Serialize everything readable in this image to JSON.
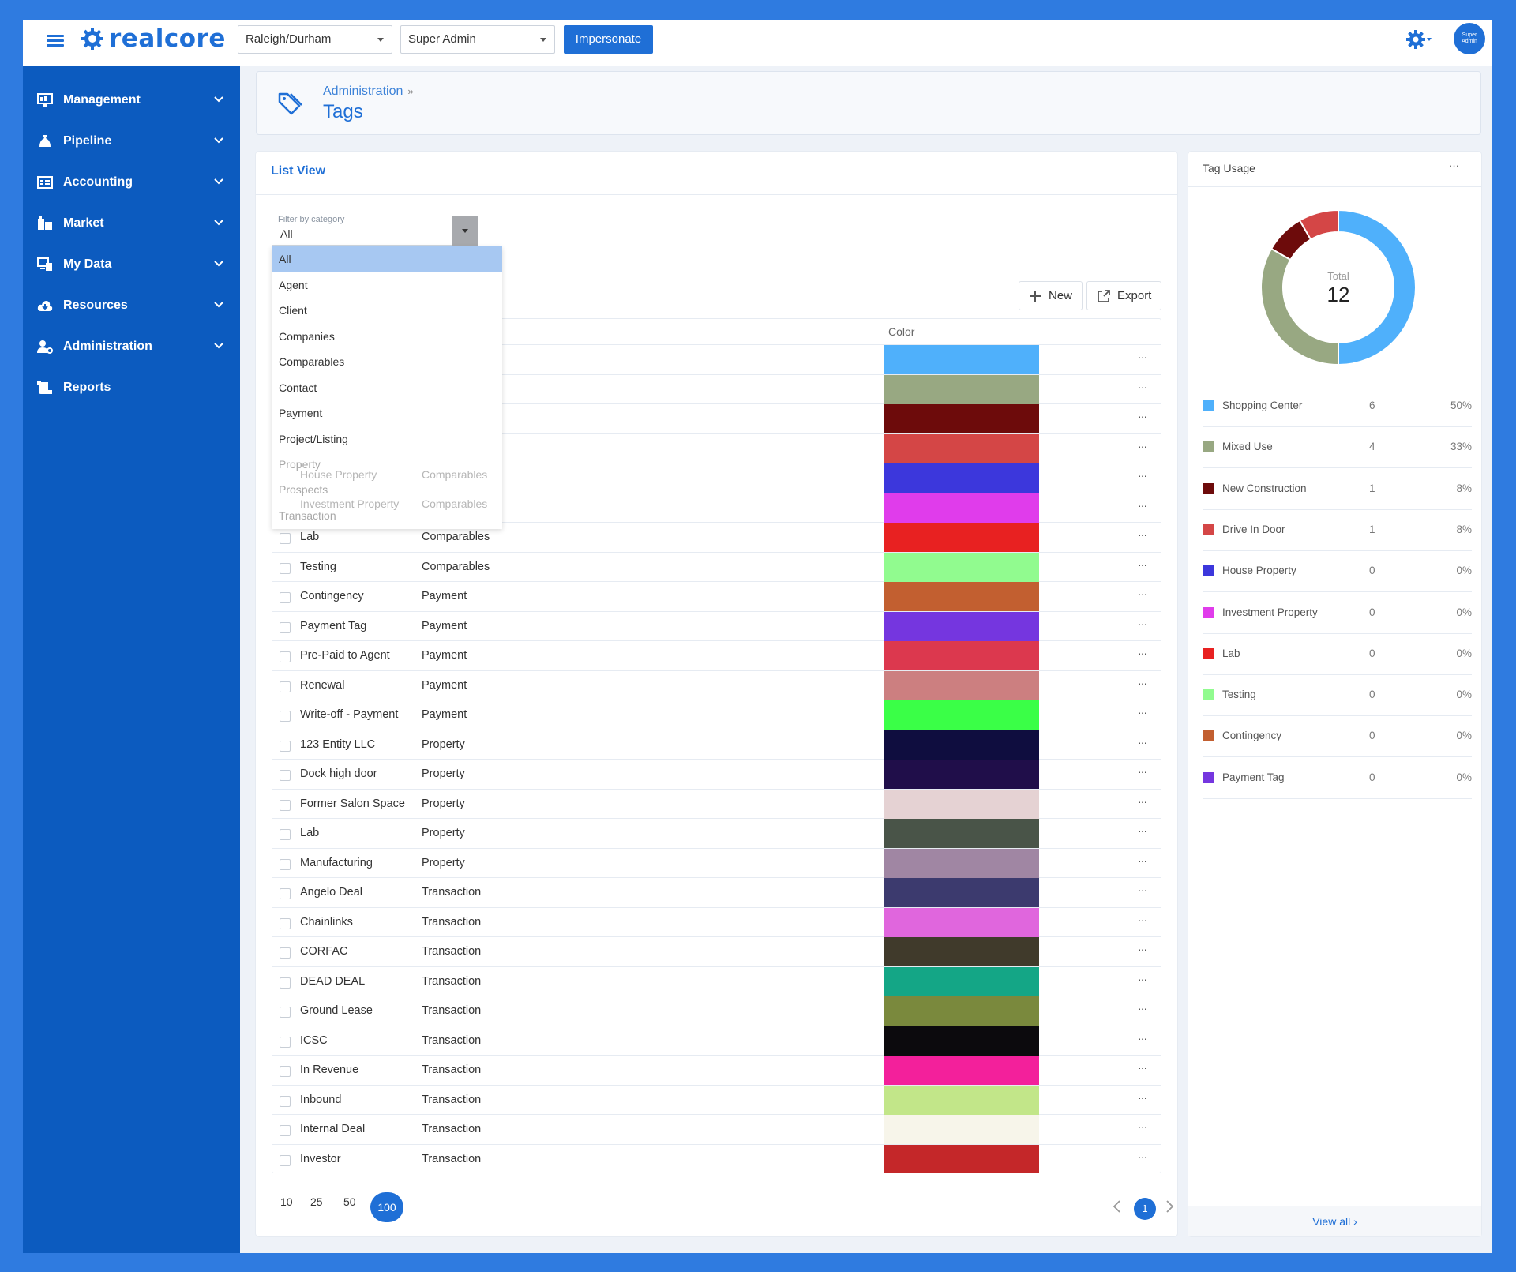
{
  "app": {
    "logo_text": "realcore"
  },
  "topbar": {
    "market_select": "Raleigh/Durham",
    "role_select": "Super Admin",
    "impersonate_label": "Impersonate",
    "avatar_text": "Super Admin"
  },
  "sidebar": {
    "items": [
      {
        "label": "Management",
        "icon": "management-icon"
      },
      {
        "label": "Pipeline",
        "icon": "pipeline-icon"
      },
      {
        "label": "Accounting",
        "icon": "accounting-icon"
      },
      {
        "label": "Market",
        "icon": "market-icon"
      },
      {
        "label": "My Data",
        "icon": "my-data-icon"
      },
      {
        "label": "Resources",
        "icon": "resources-icon"
      },
      {
        "label": "Administration",
        "icon": "administration-icon"
      },
      {
        "label": "Reports",
        "icon": "reports-icon"
      }
    ]
  },
  "header": {
    "breadcrumb": "Administration",
    "breadcrumb_sep": "»",
    "title": "Tags"
  },
  "list": {
    "title": "List View",
    "filter": {
      "label": "Filter by category",
      "value": "All"
    },
    "dropdown": [
      "All",
      "Agent",
      "Client",
      "Companies",
      "Comparables",
      "Contact",
      "Payment",
      "Project/Listing"
    ],
    "dropdown_faded": [
      "Property",
      "Prospects",
      "Transaction"
    ],
    "new_label": "New",
    "export_label": "Export",
    "color_header": "Color",
    "hidden_rows": [
      {
        "name": "House Property",
        "category": "Comparables"
      },
      {
        "name": "Investment Property",
        "category": "Comparables"
      }
    ],
    "swatches_top": [
      "#4fb0fb",
      "#98a882",
      "#6d0b0b",
      "#d44646",
      "#3c37dc",
      "#e03ceb"
    ],
    "rows": [
      {
        "name": "Lab",
        "category": "Comparables",
        "color": "#e82121"
      },
      {
        "name": "Testing",
        "category": "Comparables",
        "color": "#91fb8f"
      },
      {
        "name": "Contingency",
        "category": "Payment",
        "color": "#c25f30"
      },
      {
        "name": "Payment Tag",
        "category": "Payment",
        "color": "#7536df"
      },
      {
        "name": "Pre-Paid to Agent",
        "category": "Payment",
        "color": "#dc384e"
      },
      {
        "name": "Renewal",
        "category": "Payment",
        "color": "#cc7f80"
      },
      {
        "name": "Write-off - Payment",
        "category": "Payment",
        "color": "#3aff47"
      },
      {
        "name": "123 Entity LLC",
        "category": "Property",
        "color": "#0f0d3f"
      },
      {
        "name": "Dock high door",
        "category": "Property",
        "color": "#200e4a"
      },
      {
        "name": "Former Salon Space",
        "category": "Property",
        "color": "#e5d2d3"
      },
      {
        "name": "Lab",
        "category": "Property",
        "color": "#495448"
      },
      {
        "name": "Manufacturing",
        "category": "Property",
        "color": "#a086a3"
      },
      {
        "name": "Angelo Deal",
        "category": "Transaction",
        "color": "#3c3a6e"
      },
      {
        "name": "Chainlinks",
        "category": "Transaction",
        "color": "#e066dd"
      },
      {
        "name": "CORFAC",
        "category": "Transaction",
        "color": "#403a2b"
      },
      {
        "name": "DEAD DEAL",
        "category": "Transaction",
        "color": "#14a686"
      },
      {
        "name": "Ground Lease",
        "category": "Transaction",
        "color": "#7a893d"
      },
      {
        "name": "ICSC",
        "category": "Transaction",
        "color": "#0c0a0d"
      },
      {
        "name": "In Revenue",
        "category": "Transaction",
        "color": "#f3209b"
      },
      {
        "name": "Inbound",
        "category": "Transaction",
        "color": "#c2e689"
      },
      {
        "name": "Internal Deal",
        "category": "Transaction",
        "color": "#f7f5ea"
      },
      {
        "name": "Investor",
        "category": "Transaction",
        "color": "#c42729"
      }
    ],
    "page_sizes": [
      "10",
      "25",
      "50",
      "100"
    ],
    "active_page_size": "100",
    "current_page": "1"
  },
  "usage": {
    "title": "Tag Usage",
    "menu": "···",
    "total_label": "Total",
    "total_value": "12",
    "legend": [
      {
        "name": "Shopping Center",
        "count": "6",
        "pct": "50%",
        "color": "#4fb0fb"
      },
      {
        "name": "Mixed Use",
        "count": "4",
        "pct": "33%",
        "color": "#98a882"
      },
      {
        "name": "New Construction",
        "count": "1",
        "pct": "8%",
        "color": "#6d0b0b"
      },
      {
        "name": "Drive In Door",
        "count": "1",
        "pct": "8%",
        "color": "#d44646"
      },
      {
        "name": "House Property",
        "count": "0",
        "pct": "0%",
        "color": "#3c37dc"
      },
      {
        "name": "Investment Property",
        "count": "0",
        "pct": "0%",
        "color": "#e03ceb"
      },
      {
        "name": "Lab",
        "count": "0",
        "pct": "0%",
        "color": "#e82121"
      },
      {
        "name": "Testing",
        "count": "0",
        "pct": "0%",
        "color": "#91fb8f"
      },
      {
        "name": "Contingency",
        "count": "0",
        "pct": "0%",
        "color": "#c25f30"
      },
      {
        "name": "Payment Tag",
        "count": "0",
        "pct": "0%",
        "color": "#7536df"
      }
    ],
    "view_all": "View all ›"
  },
  "chart_data": {
    "type": "pie",
    "categories": [
      "Shopping Center",
      "Mixed Use",
      "New Construction",
      "Drive In Door"
    ],
    "values": [
      6,
      4,
      1,
      1
    ],
    "colors": [
      "#4fb0fb",
      "#98a882",
      "#6d0b0b",
      "#d44646"
    ]
  }
}
